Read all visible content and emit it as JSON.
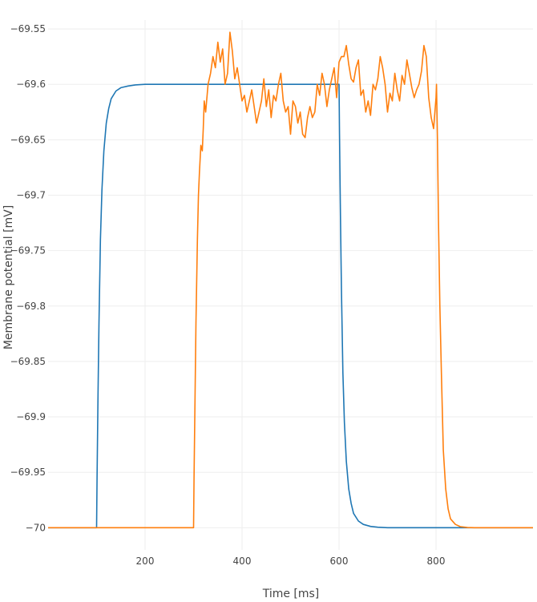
{
  "chart_data": {
    "type": "line",
    "xlabel": "Time [ms]",
    "ylabel": "Membrane potential [mV]",
    "xlim": [
      0,
      1000
    ],
    "ylim": [
      -70.02,
      -69.542
    ],
    "x_ticks": [
      200,
      400,
      600,
      800
    ],
    "y_ticks": [
      -69.55,
      -69.6,
      -69.65,
      -69.7,
      -69.75,
      -69.8,
      -69.85,
      -69.9,
      -69.95,
      -70
    ],
    "x_tick_labels": [
      "200",
      "400",
      "600",
      "800"
    ],
    "y_tick_labels": [
      "−69.55",
      "−69.6",
      "−69.65",
      "−69.7",
      "−69.75",
      "−69.8",
      "−69.85",
      "−69.9",
      "−69.95",
      "−70"
    ],
    "grid": true,
    "colors": {
      "series_blue": "#1f77b4",
      "series_orange": "#ff7f0e"
    },
    "series": [
      {
        "color": "#1f77b4",
        "x": [
          0,
          100,
          101,
          103,
          105,
          108,
          111,
          115,
          120,
          125,
          130,
          140,
          150,
          165,
          180,
          200,
          300,
          400,
          500,
          600,
          601,
          603,
          605,
          608,
          611,
          615,
          620,
          625,
          630,
          640,
          650,
          665,
          680,
          700,
          800,
          900,
          1000
        ],
        "y": [
          -70.0,
          -70.0,
          -69.955,
          -69.88,
          -69.815,
          -69.74,
          -69.695,
          -69.66,
          -69.635,
          -69.622,
          -69.613,
          -69.606,
          -69.603,
          -69.6015,
          -69.6005,
          -69.6,
          -69.6,
          -69.6,
          -69.6,
          -69.6,
          -69.645,
          -69.72,
          -69.785,
          -69.86,
          -69.905,
          -69.94,
          -69.965,
          -69.978,
          -69.987,
          -69.994,
          -69.997,
          -69.9988,
          -69.9995,
          -70.0,
          -70.0,
          -70.0,
          -70.0
        ]
      },
      {
        "color": "#ff7f0e",
        "x": [
          0,
          300,
          301,
          303,
          305,
          308,
          310,
          312,
          315,
          318,
          320,
          322,
          325,
          330,
          335,
          340,
          345,
          350,
          355,
          360,
          365,
          370,
          375,
          380,
          385,
          390,
          395,
          400,
          405,
          410,
          415,
          420,
          425,
          430,
          435,
          440,
          445,
          450,
          455,
          460,
          465,
          470,
          475,
          480,
          485,
          490,
          495,
          500,
          505,
          510,
          515,
          520,
          525,
          530,
          535,
          540,
          545,
          550,
          555,
          560,
          565,
          570,
          575,
          580,
          585,
          590,
          595,
          600,
          605,
          610,
          615,
          620,
          625,
          630,
          635,
          640,
          645,
          650,
          655,
          660,
          665,
          670,
          675,
          680,
          685,
          690,
          695,
          700,
          705,
          710,
          715,
          720,
          725,
          730,
          735,
          740,
          745,
          750,
          755,
          760,
          765,
          770,
          775,
          780,
          785,
          790,
          795,
          800,
          801,
          803,
          805,
          808,
          811,
          815,
          820,
          825,
          830,
          840,
          850,
          865,
          880,
          900,
          1000
        ],
        "y": [
          -70.0,
          -70.0,
          -69.955,
          -69.885,
          -69.815,
          -69.74,
          -69.7,
          -69.68,
          -69.655,
          -69.66,
          -69.64,
          -69.615,
          -69.625,
          -69.6,
          -69.59,
          -69.575,
          -69.585,
          -69.562,
          -69.58,
          -69.568,
          -69.6,
          -69.59,
          -69.553,
          -69.57,
          -69.595,
          -69.585,
          -69.6,
          -69.615,
          -69.61,
          -69.625,
          -69.615,
          -69.605,
          -69.62,
          -69.635,
          -69.625,
          -69.615,
          -69.595,
          -69.62,
          -69.605,
          -69.63,
          -69.61,
          -69.615,
          -69.6,
          -69.59,
          -69.615,
          -69.625,
          -69.62,
          -69.645,
          -69.615,
          -69.62,
          -69.635,
          -69.625,
          -69.645,
          -69.648,
          -69.63,
          -69.62,
          -69.63,
          -69.625,
          -69.6,
          -69.61,
          -69.59,
          -69.6,
          -69.62,
          -69.605,
          -69.595,
          -69.585,
          -69.612,
          -69.58,
          -69.575,
          -69.575,
          -69.565,
          -69.582,
          -69.595,
          -69.598,
          -69.585,
          -69.578,
          -69.61,
          -69.605,
          -69.625,
          -69.615,
          -69.628,
          -69.6,
          -69.605,
          -69.595,
          -69.575,
          -69.585,
          -69.6,
          -69.625,
          -69.608,
          -69.615,
          -69.59,
          -69.605,
          -69.615,
          -69.592,
          -69.6,
          -69.578,
          -69.59,
          -69.603,
          -69.612,
          -69.605,
          -69.6,
          -69.588,
          -69.565,
          -69.575,
          -69.612,
          -69.63,
          -69.64,
          -69.612,
          -69.6,
          -69.65,
          -69.72,
          -69.8,
          -69.86,
          -69.93,
          -69.965,
          -69.983,
          -69.992,
          -69.997,
          -69.999,
          -69.9998,
          -70.0,
          -70.0,
          -70.0
        ]
      }
    ]
  }
}
